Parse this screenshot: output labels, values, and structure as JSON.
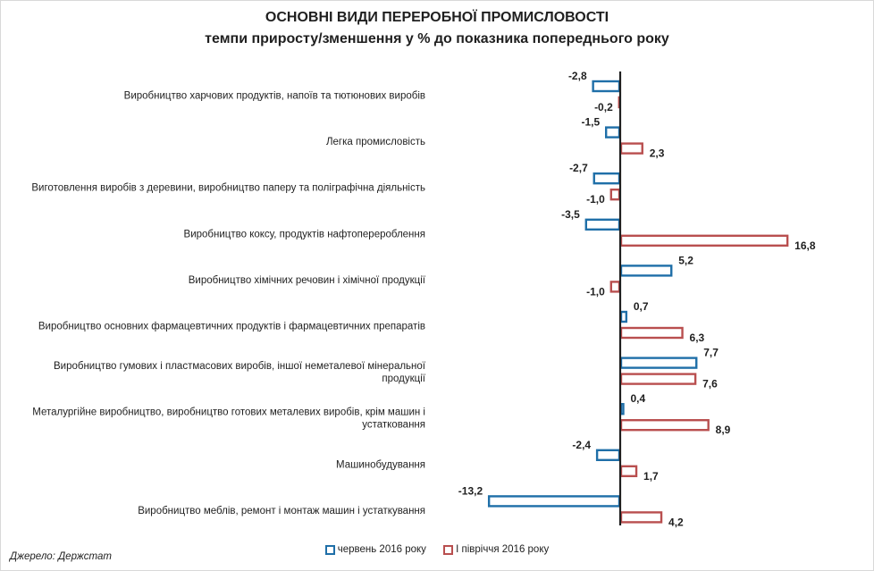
{
  "chart_data": {
    "type": "bar",
    "orientation": "horizontal",
    "title": "ОСНОВНІ ВИДИ ПЕРЕРОБНОЇ ПРОМИСЛОВОСТІ",
    "subtitle": "темпи приросту/зменшення у % до показника попереднього року",
    "categories": [
      [
        "Виробництво  харчових продуктів, напоїв та тютюнових  виробів"
      ],
      [
        "Легка промисловість"
      ],
      [
        "Виготовлення  виробів з деревини,  виробництво паперу та поліграфічна діяльність"
      ],
      [
        "Виробництво  коксу, продуктів нафтоперероблення"
      ],
      [
        "Виробництво  хімічних речовин  і хімічної продукції"
      ],
      [
        "Виробництво  основних фармацевтичних продуктів і фармацевтичних препаратів"
      ],
      [
        "Виробництво  гумових і пластмасових виробів, іншої неметалевої  мінеральної",
        "продукції"
      ],
      [
        "Металургійне виробництво, виробництво готових металевих виробів, крім машин і",
        "устатковання"
      ],
      [
        "Машинобудування"
      ],
      [
        "Виробництво  меблів, ремонт і монтаж машин  і устаткування"
      ]
    ],
    "series": [
      {
        "name": "червень  2016 року",
        "color": "#1f6fa8",
        "values": [
          -2.8,
          -1.5,
          -2.7,
          -3.5,
          5.2,
          0.7,
          7.7,
          0.4,
          -2.4,
          -13.2
        ],
        "labels": [
          "-2,8",
          "-1,5",
          "-2,7",
          "-3,5",
          "5,2",
          "0,7",
          "7,7",
          "0,4",
          "-2,4",
          "-13,2"
        ]
      },
      {
        "name": "І півріччя 2016 року",
        "color": "#b94f4f",
        "values": [
          -0.2,
          2.3,
          -1.0,
          16.8,
          -1.0,
          6.3,
          7.6,
          8.9,
          1.7,
          4.2
        ],
        "labels": [
          "-0,2",
          "2,3",
          "-1,0",
          "16,8",
          "-1,0",
          "6,3",
          "7,6",
          "8,9",
          "1,7",
          "4,2"
        ]
      }
    ],
    "legend_position": "bottom",
    "grid": false
  },
  "source": "Джерело: Держстат"
}
